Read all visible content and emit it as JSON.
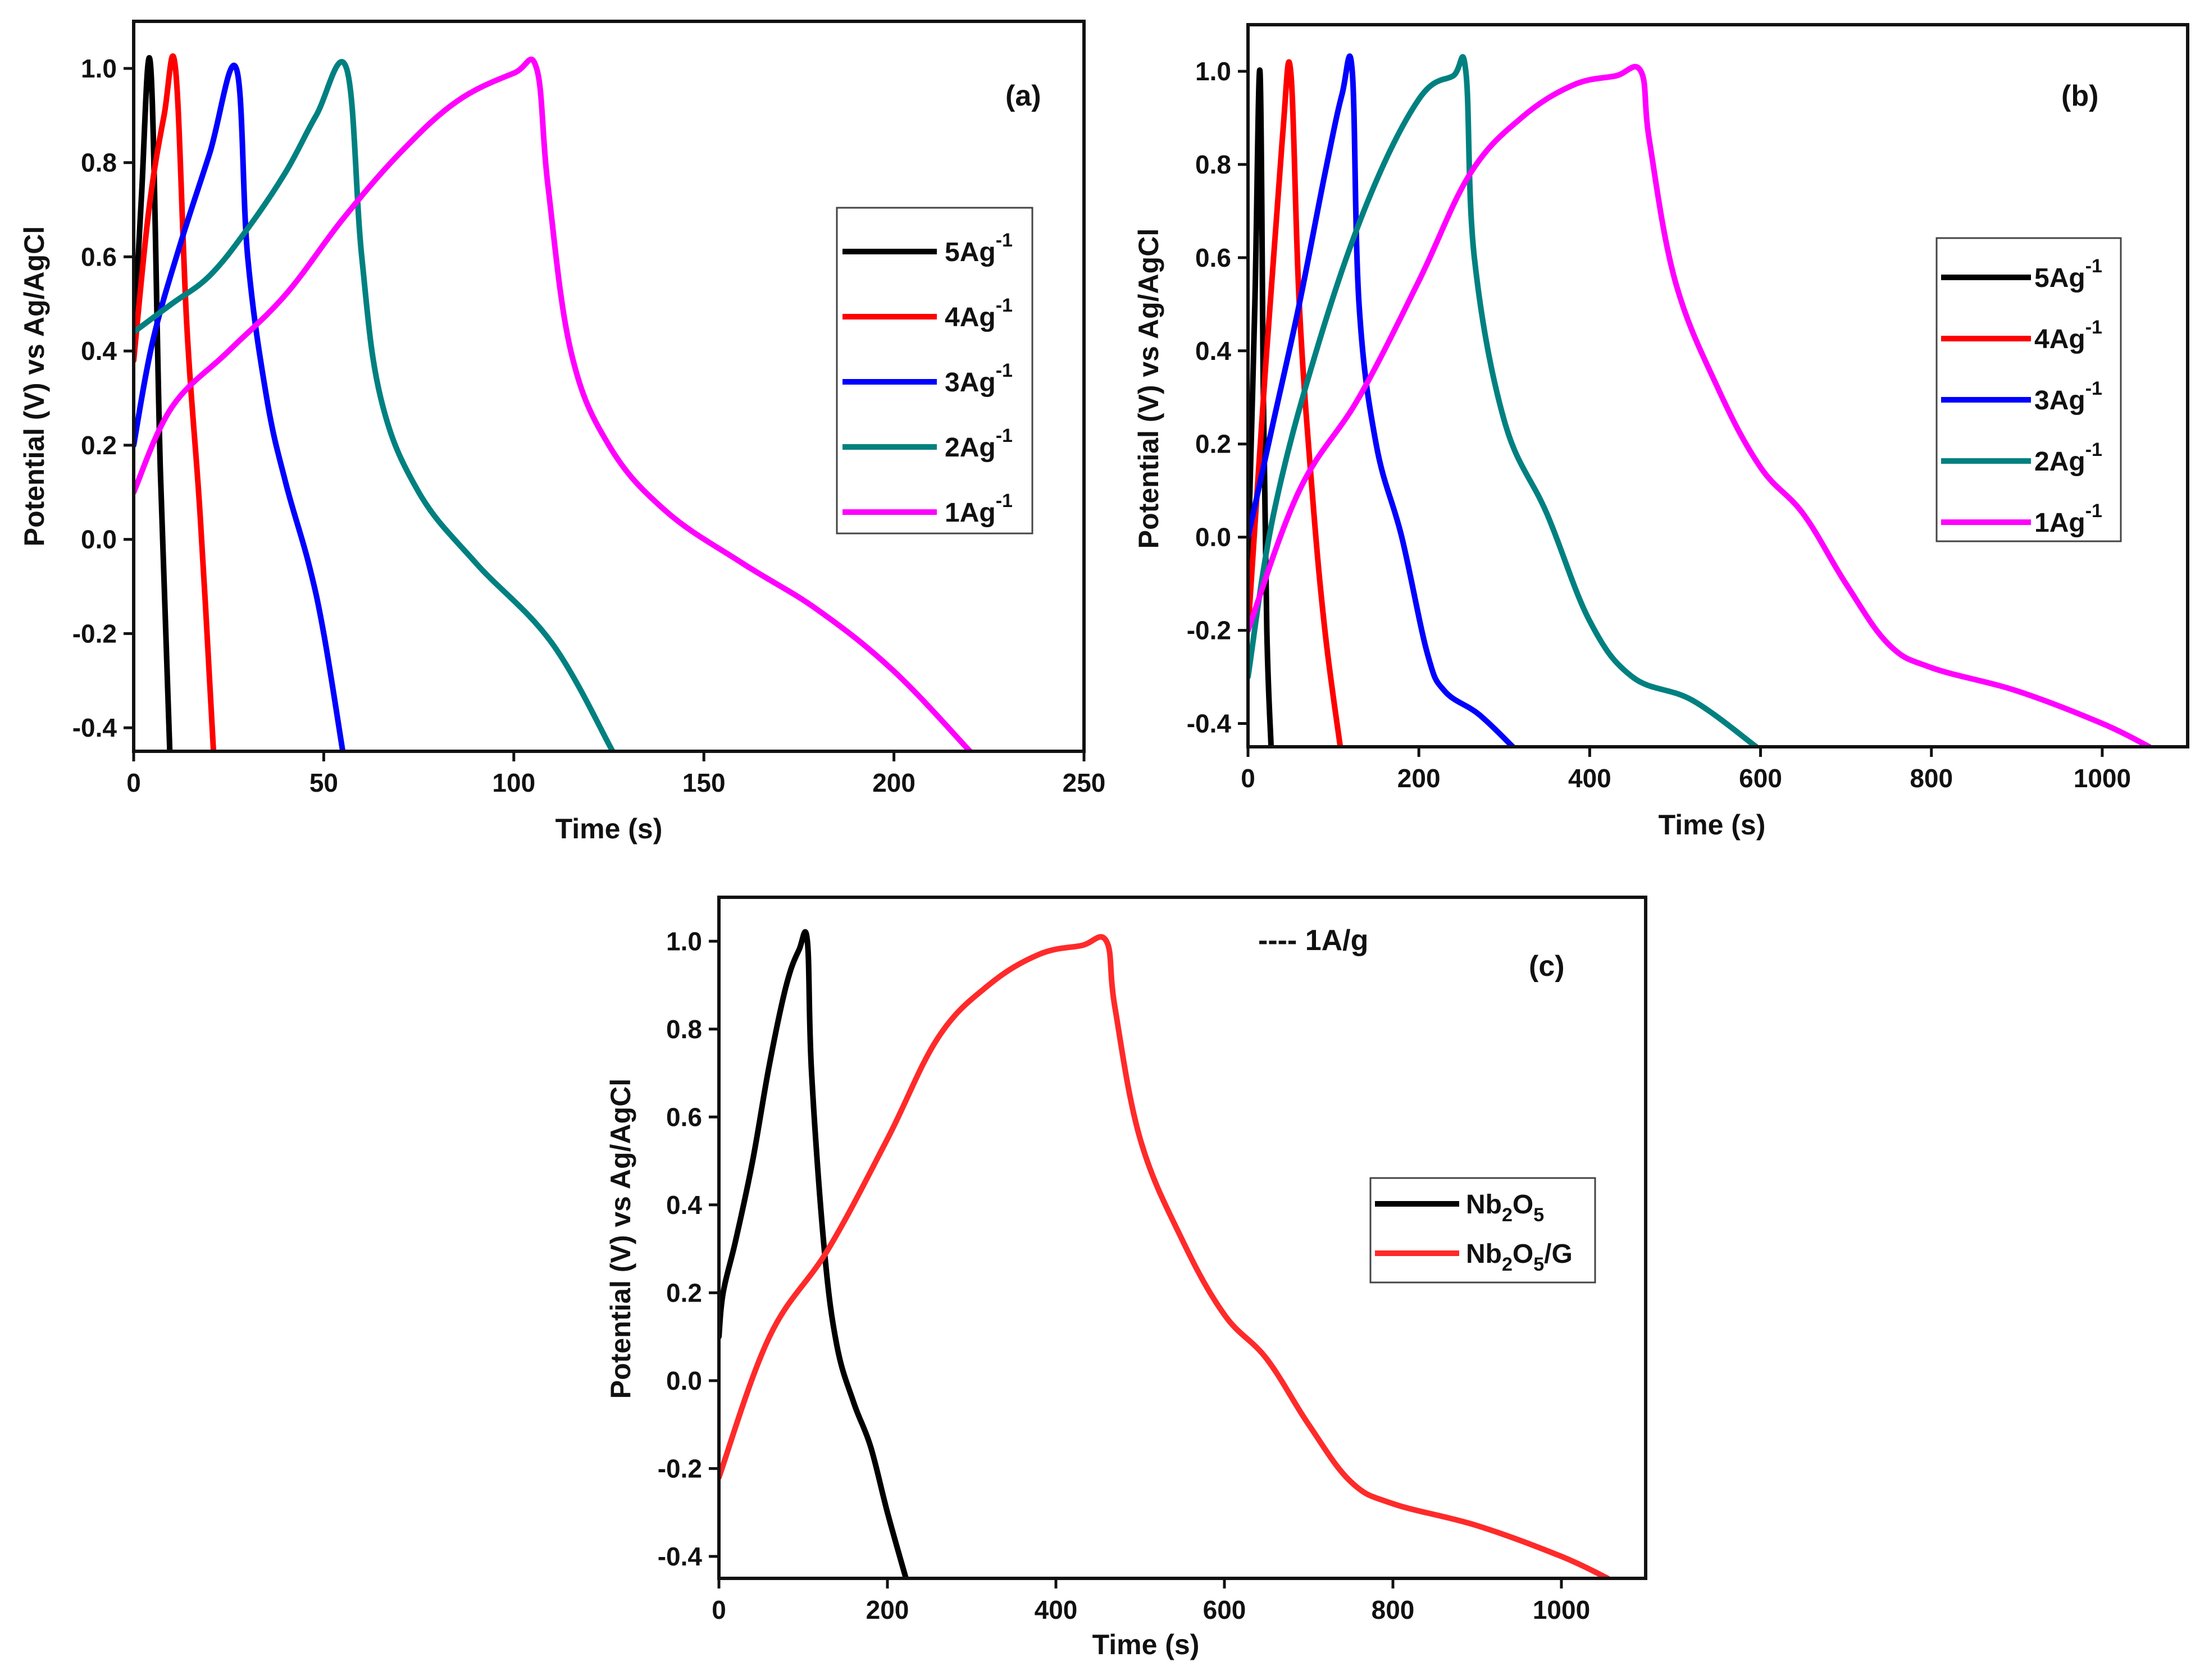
{
  "figure": {
    "background": "#ffffff"
  },
  "chart_data": [
    {
      "id": "a",
      "type": "line",
      "panel_label": "(a)",
      "xlabel": "Time (s)",
      "ylabel": "Potential (V) vs Ag/AgCl",
      "xlim": [
        0,
        250
      ],
      "ylim": [
        -0.45,
        1.1
      ],
      "xticks": [
        0,
        50,
        100,
        150,
        200,
        250
      ],
      "xtick_labels": [
        "0",
        "50",
        "100",
        "150",
        "200",
        "250"
      ],
      "yticks": [
        -0.4,
        -0.2,
        0.0,
        0.2,
        0.4,
        0.6,
        0.8,
        1.0
      ],
      "ytick_labels": [
        "-0.4",
        "-0.2",
        "0.0",
        "0.2",
        "0.4",
        "0.6",
        "0.8",
        "1.0"
      ],
      "legend_position": "right-middle",
      "series": [
        {
          "name": "5Ag-1",
          "label_main": "5Ag",
          "label_sup": "-1",
          "color": "#000000",
          "x": [
            0,
            2,
            4.5,
            7,
            9.5
          ],
          "y": [
            0.4,
            0.72,
            1.0,
            0.15,
            -0.45
          ]
        },
        {
          "name": "4Ag-1",
          "label_main": "4Ag",
          "label_sup": "-1",
          "color": "#ff0000",
          "x": [
            0,
            4,
            8,
            11,
            14,
            17.5,
            21
          ],
          "y": [
            0.38,
            0.7,
            0.9,
            1.0,
            0.45,
            0.05,
            -0.45
          ]
        },
        {
          "name": "3Ag-1",
          "label_main": "3Ag",
          "label_sup": "-1",
          "color": "#0000ff",
          "x": [
            0,
            5,
            12,
            20,
            27,
            30,
            35,
            40,
            46,
            50,
            55
          ],
          "y": [
            0.2,
            0.42,
            0.62,
            0.82,
            1.0,
            0.6,
            0.3,
            0.12,
            -0.05,
            -0.2,
            -0.45
          ]
        },
        {
          "name": "2Ag-1",
          "label_main": "2Ag",
          "label_sup": "-1",
          "color": "#008080",
          "x": [
            0,
            10,
            20,
            30,
            40,
            48,
            56,
            60,
            65,
            75,
            90,
            110,
            126
          ],
          "y": [
            0.44,
            0.5,
            0.56,
            0.66,
            0.78,
            0.9,
            1.0,
            0.6,
            0.3,
            0.1,
            -0.05,
            -0.22,
            -0.45
          ]
        },
        {
          "name": "1Ag-1",
          "label_main": "1Ag",
          "label_sup": "-1",
          "color": "#ff00ff",
          "x": [
            0,
            10,
            25,
            40,
            55,
            70,
            85,
            100,
            106,
            109,
            115,
            125,
            140,
            160,
            180,
            200,
            220
          ],
          "y": [
            0.1,
            0.28,
            0.4,
            0.52,
            0.68,
            0.82,
            0.93,
            0.99,
            1.0,
            0.75,
            0.4,
            0.2,
            0.06,
            -0.05,
            -0.15,
            -0.28,
            -0.45
          ]
        }
      ]
    },
    {
      "id": "b",
      "type": "line",
      "panel_label": "(b)",
      "xlabel": "Time (s)",
      "ylabel": "Potential (V) vs Ag/AgCl",
      "xlim": [
        0,
        1100
      ],
      "ylim": [
        -0.45,
        1.1
      ],
      "xticks": [
        0,
        200,
        400,
        600,
        800,
        1000
      ],
      "xtick_labels": [
        "0",
        "200",
        "400",
        "600",
        "800",
        "1000"
      ],
      "yticks": [
        -0.4,
        -0.2,
        0.0,
        0.2,
        0.4,
        0.6,
        0.8,
        1.0
      ],
      "ytick_labels": [
        "-0.4",
        "-0.2",
        "0.0",
        "0.2",
        "0.4",
        "0.6",
        "0.8",
        "1.0"
      ],
      "legend_position": "right-middle",
      "series": [
        {
          "name": "5Ag-1",
          "label_main": "5Ag",
          "label_sup": "-1",
          "color": "#000000",
          "x": [
            0,
            8,
            14,
            18,
            22,
            27
          ],
          "y": [
            -0.05,
            0.5,
            1.0,
            0.3,
            -0.2,
            -0.45
          ]
        },
        {
          "name": "4Ag-1",
          "label_main": "4Ag",
          "label_sup": "-1",
          "color": "#ff0000",
          "x": [
            0,
            20,
            40,
            50,
            60,
            75,
            90,
            108
          ],
          "y": [
            -0.2,
            0.35,
            0.85,
            1.0,
            0.5,
            0.1,
            -0.2,
            -0.45
          ]
        },
        {
          "name": "3Ag-1",
          "label_main": "3Ag",
          "label_sup": "-1",
          "color": "#0000ff",
          "x": [
            0,
            30,
            60,
            90,
            110,
            122,
            130,
            150,
            180,
            210,
            230,
            270,
            310
          ],
          "y": [
            0.0,
            0.25,
            0.5,
            0.78,
            0.95,
            1.0,
            0.5,
            0.2,
            0.0,
            -0.25,
            -0.33,
            -0.38,
            -0.45
          ]
        },
        {
          "name": "2Ag-1",
          "label_main": "2Ag",
          "label_sup": "-1",
          "color": "#008080",
          "x": [
            0,
            30,
            80,
            140,
            200,
            240,
            255,
            265,
            300,
            350,
            400,
            450,
            520,
            595
          ],
          "y": [
            -0.3,
            0.05,
            0.4,
            0.72,
            0.94,
            0.99,
            1.0,
            0.6,
            0.25,
            0.05,
            -0.18,
            -0.3,
            -0.35,
            -0.45
          ]
        },
        {
          "name": "1Ag-1",
          "label_main": "1Ag",
          "label_sup": "-1",
          "color": "#ff00ff",
          "x": [
            0,
            60,
            130,
            200,
            260,
            320,
            380,
            430,
            460,
            470,
            500,
            550,
            600,
            650,
            700,
            750,
            800,
            900,
            1000,
            1055
          ],
          "y": [
            -0.2,
            0.1,
            0.3,
            0.55,
            0.78,
            0.9,
            0.97,
            0.99,
            1.0,
            0.85,
            0.55,
            0.32,
            0.15,
            0.05,
            -0.1,
            -0.23,
            -0.28,
            -0.33,
            -0.4,
            -0.45
          ]
        }
      ]
    },
    {
      "id": "c",
      "type": "line",
      "panel_label": "(c)",
      "annotation": "---- 1A/g",
      "xlabel": "Time (s)",
      "ylabel": "Potential (V) vs Ag/AgCl",
      "xlim": [
        0,
        1100
      ],
      "ylim": [
        -0.45,
        1.1
      ],
      "xticks": [
        0,
        200,
        400,
        600,
        800,
        1000
      ],
      "xtick_labels": [
        "0",
        "200",
        "400",
        "600",
        "800",
        "1000"
      ],
      "yticks": [
        -0.4,
        -0.2,
        0.0,
        0.2,
        0.4,
        0.6,
        0.8,
        1.0
      ],
      "ytick_labels": [
        "-0.4",
        "-0.2",
        "0.0",
        "0.2",
        "0.4",
        "0.6",
        "0.8",
        "1.0"
      ],
      "legend_position": "right-middle",
      "series": [
        {
          "name": "Nb2O5",
          "label_parts": [
            "Nb",
            "2",
            "O",
            "5",
            ""
          ],
          "color": "#000000",
          "x": [
            0,
            5,
            20,
            40,
            60,
            80,
            95,
            105,
            110,
            125,
            140,
            160,
            180,
            200,
            222
          ],
          "y": [
            0.1,
            0.2,
            0.32,
            0.5,
            0.72,
            0.9,
            0.98,
            1.0,
            0.7,
            0.3,
            0.08,
            -0.05,
            -0.15,
            -0.3,
            -0.45
          ]
        },
        {
          "name": "Nb2O5/G",
          "label_parts": [
            "Nb",
            "2",
            "O",
            "5",
            "/G"
          ],
          "color": "#ff2a2a",
          "x": [
            0,
            60,
            130,
            200,
            260,
            320,
            380,
            430,
            460,
            470,
            500,
            550,
            600,
            650,
            700,
            750,
            800,
            900,
            1000,
            1055
          ],
          "y": [
            -0.22,
            0.1,
            0.3,
            0.55,
            0.78,
            0.9,
            0.97,
            0.99,
            1.0,
            0.85,
            0.55,
            0.32,
            0.15,
            0.05,
            -0.1,
            -0.23,
            -0.28,
            -0.33,
            -0.4,
            -0.45
          ]
        }
      ]
    }
  ]
}
